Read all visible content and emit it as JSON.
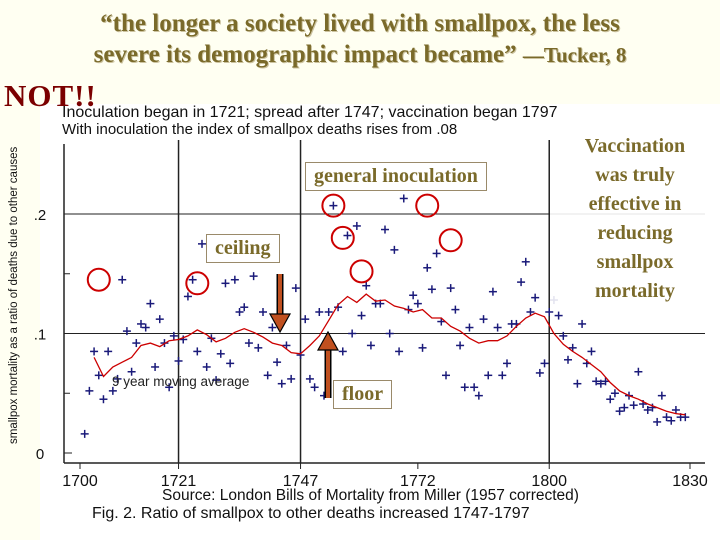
{
  "header": {
    "quote_line1": "“the longer a society lived with smallpox, the less",
    "quote_line2": "severe its demographic impact became”",
    "attribution": "—Tucker, 8",
    "not_label": "NOT!!"
  },
  "chart_data": {
    "type": "scatter",
    "title_line1": "Inoculation began in 1721; spread after 1747; vaccination began 1797",
    "title_line2": "With inoculation the index of smallpox deaths rises from .08",
    "ylabel": "smallpox mortality as a ratio of deaths due to other causes",
    "xlim": [
      1700,
      1830
    ],
    "ylim": [
      0,
      0.24
    ],
    "x_ticks": [
      1700,
      1721,
      1747,
      1772,
      1800,
      1830
    ],
    "y_ticks": [
      {
        "value": 0,
        "label": "0"
      },
      {
        "value": 0.1,
        "label": ".1"
      },
      {
        "value": 0.2,
        "label": ".2"
      }
    ],
    "vertical_markers": [
      1721,
      1747,
      1800
    ],
    "horizontal_markers": [
      0.1,
      0.2
    ],
    "series_label": "9 year moving average",
    "points": [
      [
        1701,
        0.016
      ],
      [
        1702,
        0.052
      ],
      [
        1703,
        0.085
      ],
      [
        1704,
        0.065
      ],
      [
        1705,
        0.045
      ],
      [
        1706,
        0.085
      ],
      [
        1707,
        0.052
      ],
      [
        1708,
        0.062
      ],
      [
        1709,
        0.145
      ],
      [
        1710,
        0.102
      ],
      [
        1711,
        0.068
      ],
      [
        1712,
        0.092
      ],
      [
        1713,
        0.108
      ],
      [
        1714,
        0.105
      ],
      [
        1715,
        0.125
      ],
      [
        1716,
        0.072
      ],
      [
        1717,
        0.112
      ],
      [
        1718,
        0.092
      ],
      [
        1719,
        0.055
      ],
      [
        1720,
        0.098
      ],
      [
        1721,
        0.077
      ],
      [
        1722,
        0.095
      ],
      [
        1723,
        0.131
      ],
      [
        1724,
        0.145
      ],
      [
        1725,
        0.085
      ],
      [
        1726,
        0.175
      ],
      [
        1727,
        0.072
      ],
      [
        1728,
        0.096
      ],
      [
        1729,
        0.061
      ],
      [
        1730,
        0.083
      ],
      [
        1731,
        0.142
      ],
      [
        1732,
        0.075
      ],
      [
        1733,
        0.145
      ],
      [
        1734,
        0.118
      ],
      [
        1735,
        0.122
      ],
      [
        1736,
        0.092
      ],
      [
        1737,
        0.148
      ],
      [
        1738,
        0.088
      ],
      [
        1739,
        0.118
      ],
      [
        1740,
        0.065
      ],
      [
        1741,
        0.105
      ],
      [
        1742,
        0.076
      ],
      [
        1743,
        0.058
      ],
      [
        1744,
        0.09
      ],
      [
        1745,
        0.062
      ],
      [
        1746,
        0.138
      ],
      [
        1747,
        0.082
      ],
      [
        1748,
        0.112
      ],
      [
        1749,
        0.062
      ],
      [
        1750,
        0.055
      ],
      [
        1751,
        0.118
      ],
      [
        1752,
        0.048
      ],
      [
        1753,
        0.118
      ],
      [
        1754,
        0.207
      ],
      [
        1755,
        0.122
      ],
      [
        1756,
        0.085
      ],
      [
        1757,
        0.182
      ],
      [
        1758,
        0.1
      ],
      [
        1759,
        0.19
      ],
      [
        1760,
        0.115
      ],
      [
        1761,
        0.14
      ],
      [
        1762,
        0.09
      ],
      [
        1763,
        0.125
      ],
      [
        1764,
        0.125
      ],
      [
        1765,
        0.187
      ],
      [
        1766,
        0.1
      ],
      [
        1767,
        0.17
      ],
      [
        1768,
        0.085
      ],
      [
        1769,
        0.213
      ],
      [
        1770,
        0.12
      ],
      [
        1771,
        0.132
      ],
      [
        1772,
        0.125
      ],
      [
        1773,
        0.088
      ],
      [
        1774,
        0.155
      ],
      [
        1775,
        0.137
      ],
      [
        1776,
        0.167
      ],
      [
        1777,
        0.11
      ],
      [
        1778,
        0.065
      ],
      [
        1779,
        0.138
      ],
      [
        1780,
        0.12
      ],
      [
        1781,
        0.09
      ],
      [
        1782,
        0.055
      ],
      [
        1783,
        0.105
      ],
      [
        1784,
        0.055
      ],
      [
        1785,
        0.048
      ],
      [
        1786,
        0.112
      ],
      [
        1787,
        0.065
      ],
      [
        1788,
        0.135
      ],
      [
        1789,
        0.105
      ],
      [
        1790,
        0.065
      ],
      [
        1791,
        0.075
      ],
      [
        1792,
        0.108
      ],
      [
        1793,
        0.108
      ],
      [
        1794,
        0.143
      ],
      [
        1795,
        0.16
      ],
      [
        1796,
        0.118
      ],
      [
        1797,
        0.13
      ],
      [
        1798,
        0.067
      ],
      [
        1799,
        0.075
      ],
      [
        1800,
        0.118
      ],
      [
        1801,
        0.128
      ],
      [
        1802,
        0.115
      ],
      [
        1803,
        0.098
      ],
      [
        1804,
        0.078
      ],
      [
        1805,
        0.088
      ],
      [
        1806,
        0.058
      ],
      [
        1807,
        0.108
      ],
      [
        1808,
        0.075
      ],
      [
        1809,
        0.085
      ],
      [
        1810,
        0.06
      ],
      [
        1811,
        0.058
      ],
      [
        1812,
        0.06
      ],
      [
        1813,
        0.045
      ],
      [
        1814,
        0.05
      ],
      [
        1815,
        0.035
      ],
      [
        1816,
        0.038
      ],
      [
        1817,
        0.048
      ],
      [
        1818,
        0.04
      ],
      [
        1819,
        0.068
      ],
      [
        1820,
        0.041
      ],
      [
        1821,
        0.036
      ],
      [
        1822,
        0.038
      ],
      [
        1823,
        0.026
      ],
      [
        1824,
        0.048
      ],
      [
        1825,
        0.03
      ],
      [
        1826,
        0.027
      ],
      [
        1827,
        0.036
      ],
      [
        1828,
        0.03
      ],
      [
        1829,
        0.03
      ]
    ],
    "moving_average": [
      [
        1703,
        0.08
      ],
      [
        1705,
        0.064
      ],
      [
        1707,
        0.072
      ],
      [
        1709,
        0.076
      ],
      [
        1711,
        0.08
      ],
      [
        1713,
        0.09
      ],
      [
        1715,
        0.092
      ],
      [
        1717,
        0.089
      ],
      [
        1719,
        0.094
      ],
      [
        1721,
        0.095
      ],
      [
        1723,
        0.098
      ],
      [
        1725,
        0.103
      ],
      [
        1727,
        0.099
      ],
      [
        1729,
        0.093
      ],
      [
        1731,
        0.096
      ],
      [
        1733,
        0.101
      ],
      [
        1735,
        0.104
      ],
      [
        1737,
        0.101
      ],
      [
        1739,
        0.097
      ],
      [
        1741,
        0.092
      ],
      [
        1743,
        0.09
      ],
      [
        1745,
        0.084
      ],
      [
        1747,
        0.083
      ],
      [
        1749,
        0.09
      ],
      [
        1751,
        0.098
      ],
      [
        1753,
        0.111
      ],
      [
        1755,
        0.124
      ],
      [
        1757,
        0.131
      ],
      [
        1759,
        0.126
      ],
      [
        1761,
        0.133
      ],
      [
        1763,
        0.127
      ],
      [
        1765,
        0.128
      ],
      [
        1767,
        0.123
      ],
      [
        1769,
        0.121
      ],
      [
        1771,
        0.118
      ],
      [
        1773,
        0.12
      ],
      [
        1775,
        0.113
      ],
      [
        1777,
        0.113
      ],
      [
        1779,
        0.106
      ],
      [
        1781,
        0.102
      ],
      [
        1783,
        0.096
      ],
      [
        1785,
        0.092
      ],
      [
        1787,
        0.094
      ],
      [
        1789,
        0.094
      ],
      [
        1791,
        0.098
      ],
      [
        1793,
        0.106
      ],
      [
        1795,
        0.113
      ],
      [
        1797,
        0.117
      ],
      [
        1799,
        0.114
      ],
      [
        1801,
        0.1
      ],
      [
        1803,
        0.091
      ],
      [
        1805,
        0.085
      ],
      [
        1807,
        0.08
      ],
      [
        1809,
        0.074
      ],
      [
        1811,
        0.068
      ],
      [
        1813,
        0.059
      ],
      [
        1815,
        0.052
      ],
      [
        1817,
        0.048
      ],
      [
        1819,
        0.045
      ],
      [
        1821,
        0.041
      ],
      [
        1823,
        0.038
      ],
      [
        1825,
        0.035
      ],
      [
        1827,
        0.033
      ],
      [
        1829,
        0.032
      ]
    ],
    "circled_points": [
      [
        1704,
        0.145
      ],
      [
        1725,
        0.142
      ],
      [
        1754,
        0.207
      ],
      [
        1774,
        0.207
      ],
      [
        1756,
        0.18
      ],
      [
        1779,
        0.178
      ],
      [
        1760,
        0.152
      ]
    ],
    "source": "Source:  London Bills of Mortality from Miller (1957 corrected)",
    "figure_caption": "Fig. 2.  Ratio of smallpox to other deaths increased 1747-1797"
  },
  "annotations": {
    "general_inoculation": "general inoculation",
    "ceiling": "ceiling",
    "floor": "floor",
    "vaccination_line1": "Vaccination",
    "vaccination_line2": "was truly",
    "vaccination_line3": "effective in",
    "vaccination_line4": "reducing",
    "vaccination_line5": "smallpox",
    "vaccination_line6": "mortality"
  },
  "colors": {
    "title": "#7a6a2a",
    "not": "#7b0000",
    "average": "#cc0000",
    "marker": "#1a1a7a",
    "circle": "#cc0000",
    "arrow": "#c0501f"
  }
}
